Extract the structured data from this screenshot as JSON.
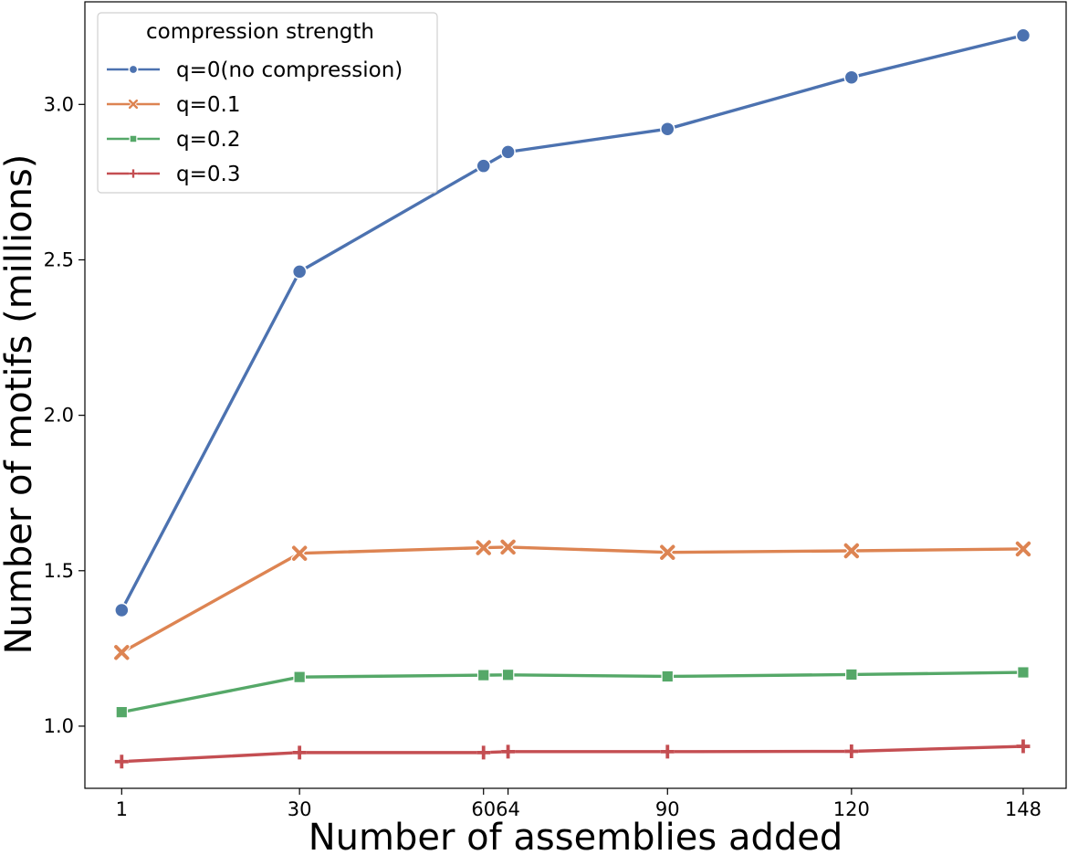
{
  "chart_data": {
    "type": "line",
    "title": "",
    "xlabel": "Number of assemblies added",
    "ylabel": "Number of motifs (millions)",
    "x": [
      1,
      30,
      60,
      64,
      90,
      120,
      148
    ],
    "x_tick_labels": [
      "1",
      "30",
      "6064",
      "90",
      "120",
      "148"
    ],
    "y_ticks": [
      1.0,
      1.5,
      2.0,
      2.5,
      3.0
    ],
    "y_tick_labels": [
      "1.0",
      "1.5",
      "2.0",
      "2.5",
      "3.0"
    ],
    "xlim": [
      -5,
      155
    ],
    "ylim": [
      0.8,
      3.33
    ],
    "grid": false,
    "legend": {
      "title": "compression strength",
      "placement": "top-left"
    },
    "series": [
      {
        "name": "q=0(no compression)",
        "color": "#4c72b0",
        "marker": "circle",
        "values": [
          1.373,
          2.462,
          2.802,
          2.847,
          2.921,
          3.087,
          3.222
        ]
      },
      {
        "name": "q=0.1",
        "color": "#dd8452",
        "marker": "x",
        "values": [
          1.237,
          1.556,
          1.574,
          1.576,
          1.559,
          1.564,
          1.57
        ]
      },
      {
        "name": "q=0.2",
        "color": "#55a868",
        "marker": "square",
        "values": [
          1.045,
          1.158,
          1.164,
          1.165,
          1.16,
          1.166,
          1.173
        ]
      },
      {
        "name": "q=0.3",
        "color": "#c44e52",
        "marker": "plus",
        "values": [
          0.886,
          0.915,
          0.915,
          0.918,
          0.918,
          0.919,
          0.935
        ]
      }
    ]
  }
}
